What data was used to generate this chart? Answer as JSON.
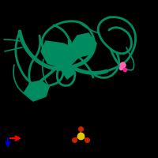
{
  "background_color": "#000000",
  "protein_color": "#008B60",
  "ligand_pink_color": "#FF69B4",
  "ligand_red_color": "#CC0000",
  "axis_x_color": "#FF0000",
  "axis_y_color": "#0000CC",
  "sulfate_center_color": "#DDCC00",
  "sulfate_oxygen_color": "#CC2200",
  "figsize": [
    2.0,
    2.0
  ],
  "dpi": 100
}
